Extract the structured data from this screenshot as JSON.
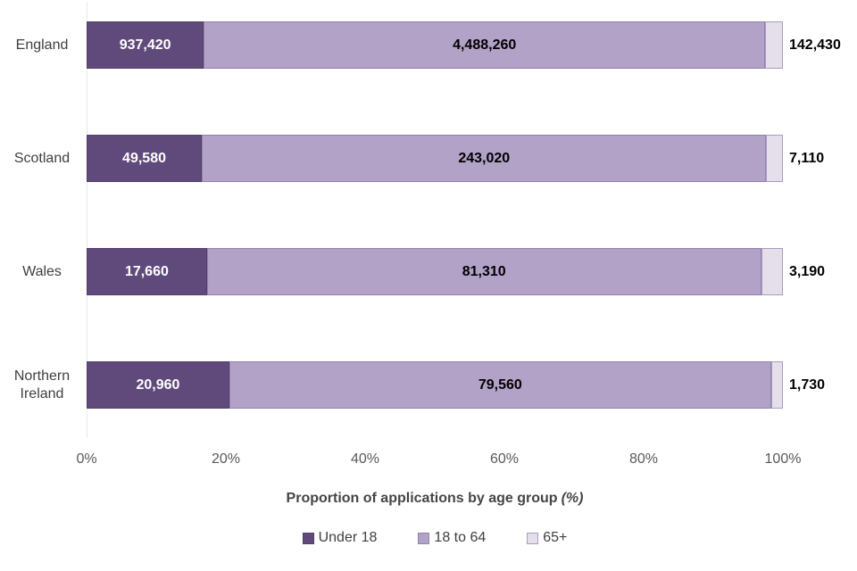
{
  "chart_data": {
    "type": "bar",
    "orientation": "horizontal",
    "stacked": true,
    "categories": [
      "England",
      "Scotland",
      "Wales",
      "Northern Ireland"
    ],
    "series": [
      {
        "name": "Under 18",
        "color": "#604a7b",
        "border_color": "#53406b",
        "label_color": "#ffffff",
        "label_placement": "inside",
        "values": [
          937420,
          49580,
          17660,
          20960
        ],
        "labels": [
          "937,420",
          "49,580",
          "17,660",
          "20,960"
        ]
      },
      {
        "name": "18 to 64",
        "color": "#b2a2c7",
        "border_color": "#9382ae",
        "label_color": "#000000",
        "label_placement": "inside",
        "values": [
          4488260,
          243020,
          81310,
          79560
        ],
        "labels": [
          "4,488,260",
          "243,020",
          "81,310",
          "79,560"
        ]
      },
      {
        "name": "65+",
        "color": "#e5dfec",
        "border_color": "#a89cc0",
        "label_color": "#000000",
        "label_placement": "outside",
        "values": [
          142430,
          7110,
          3190,
          1730
        ],
        "labels": [
          "142,430",
          "7,110",
          "3,190",
          "1,730"
        ]
      }
    ],
    "x_axis": {
      "min": 0,
      "max": 100,
      "ticks": [
        "0%",
        "20%",
        "40%",
        "60%",
        "80%",
        "100%"
      ],
      "title": "Proportion of applications by age group",
      "title_suffix": "(%)"
    },
    "legend_position": "bottom",
    "grid": false,
    "background_color": "#ffffff",
    "axis_line_color": "#e8e6eb"
  }
}
